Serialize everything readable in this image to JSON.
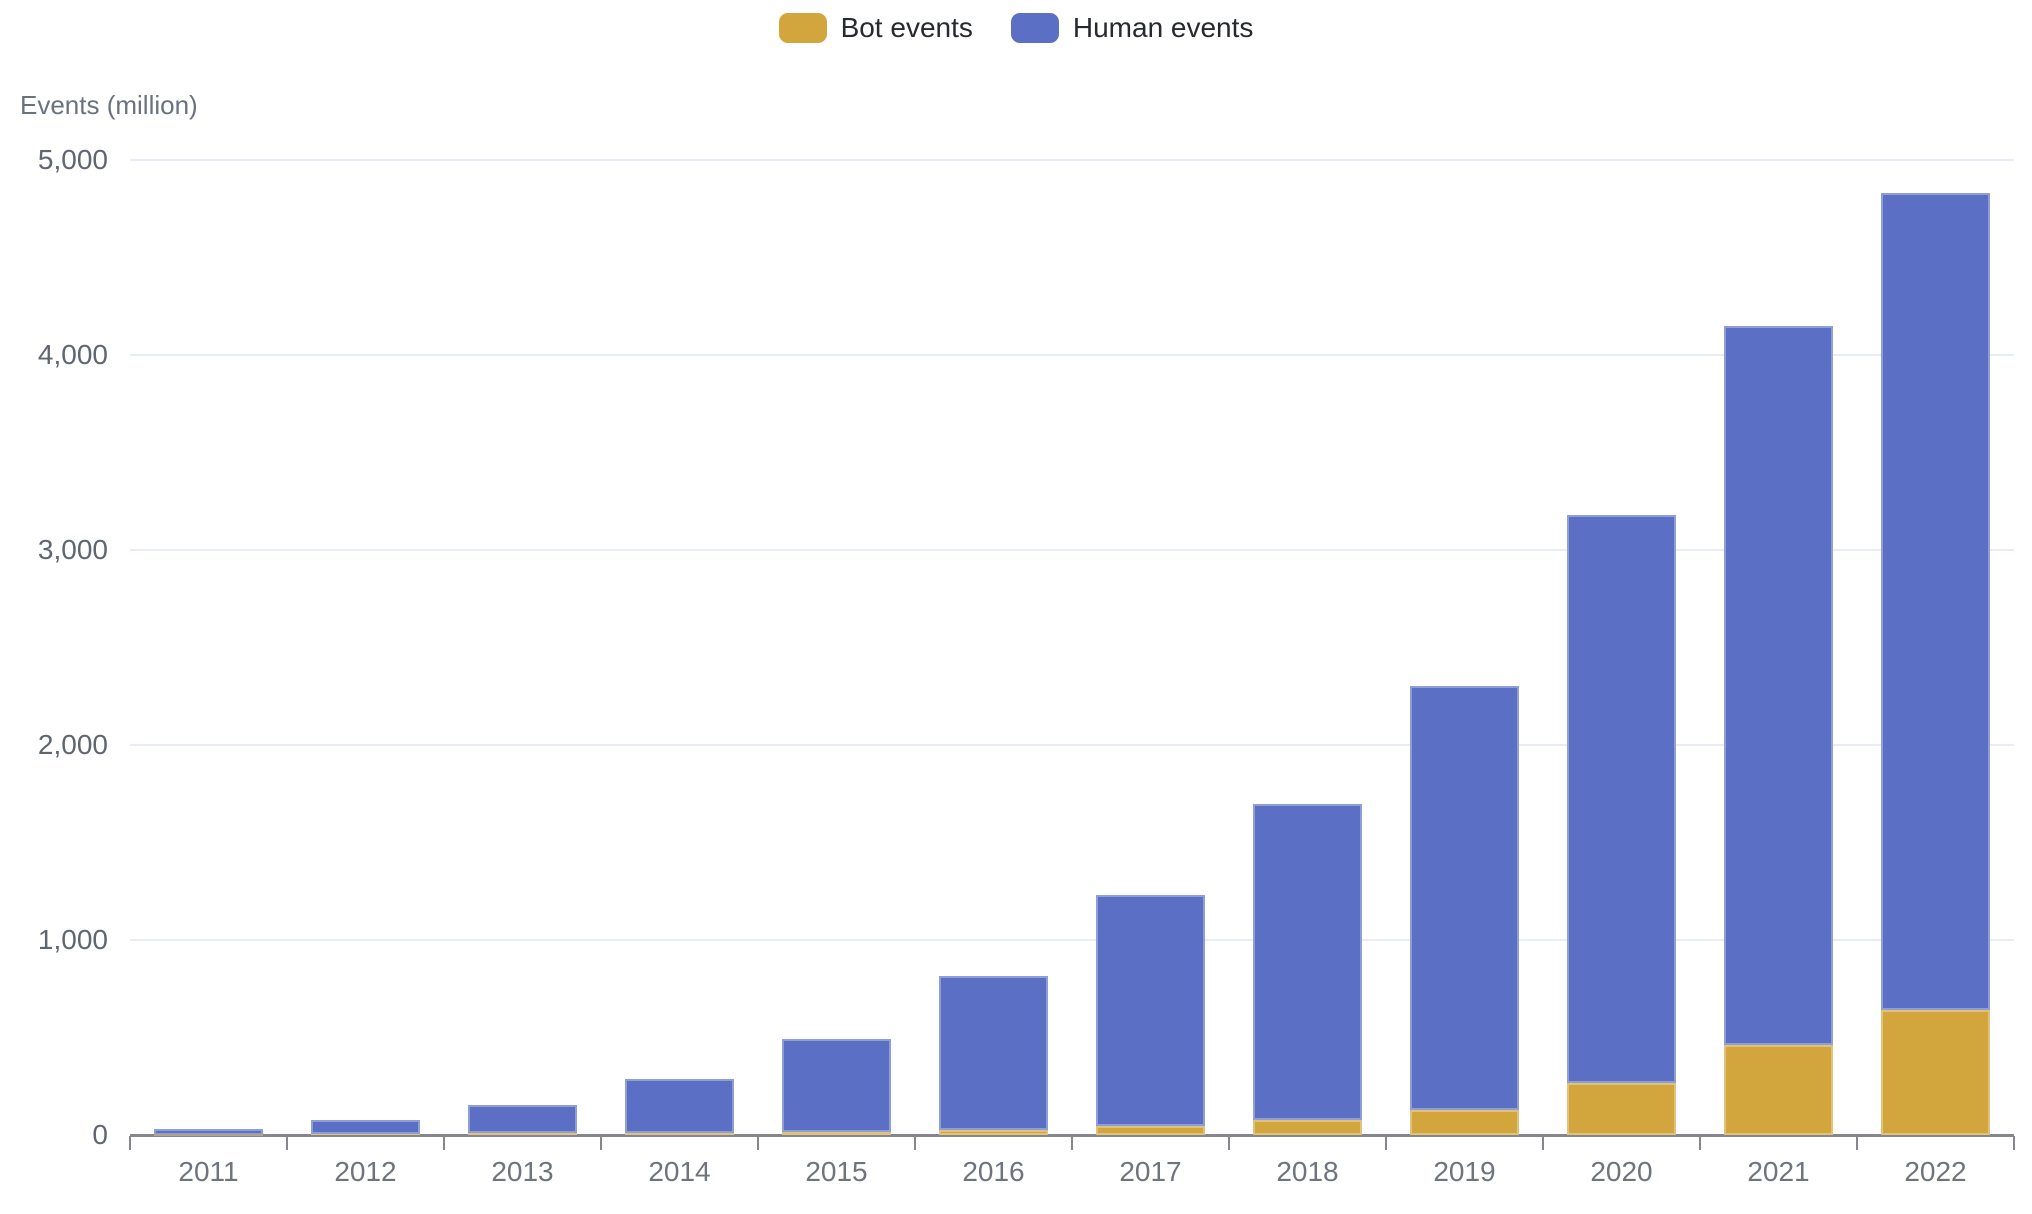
{
  "legend": [
    {
      "label": "Bot events",
      "color": "#d2a63c"
    },
    {
      "label": "Human events",
      "color": "#5b70c5"
    }
  ],
  "y_axis": {
    "title": "Events (million)",
    "tick_values": [
      0,
      1000,
      2000,
      3000,
      4000,
      5000
    ],
    "tick_labels": [
      "0",
      "1,000",
      "2,000",
      "3,000",
      "4,000",
      "5,000"
    ]
  },
  "chart_data": {
    "type": "bar",
    "stacked": true,
    "title": "",
    "xlabel": "",
    "ylabel": "Events (million)",
    "ylim": [
      0,
      5000
    ],
    "grid": true,
    "legend_position": "top-center",
    "categories": [
      "2011",
      "2012",
      "2013",
      "2014",
      "2015",
      "2016",
      "2017",
      "2018",
      "2019",
      "2020",
      "2021",
      "2022"
    ],
    "series": [
      {
        "name": "Bot events",
        "color": "#d2a63c",
        "values": [
          2,
          5,
          8,
          12,
          18,
          28,
          48,
          75,
          127,
          265,
          460,
          640
        ]
      },
      {
        "name": "Human events",
        "color": "#5b70c5",
        "values": [
          28,
          70,
          145,
          273,
          477,
          787,
          1182,
          1625,
          2178,
          2915,
          3690,
          4190
        ]
      }
    ],
    "totals": [
      30,
      75,
      153,
      285,
      495,
      815,
      1230,
      1700,
      2305,
      3180,
      4150,
      4830
    ]
  }
}
